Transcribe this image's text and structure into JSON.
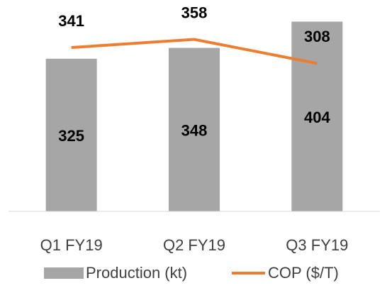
{
  "chart_data": {
    "type": "bar_line",
    "categories": [
      "Q1 FY19",
      "Q2 FY19",
      "Q3 FY19"
    ],
    "series": [
      {
        "name": "Production (kt)",
        "type": "bar",
        "color": "#a6a6a6",
        "values": [
          325,
          348,
          404
        ]
      },
      {
        "name": "COP ($/T)",
        "type": "line",
        "axis": "y2",
        "color": "#ed7d31",
        "values": [
          341,
          358,
          308
        ]
      }
    ],
    "ylim": [
      0,
      450
    ],
    "y2lim": [
      0,
      440
    ],
    "legend": "bottom"
  }
}
